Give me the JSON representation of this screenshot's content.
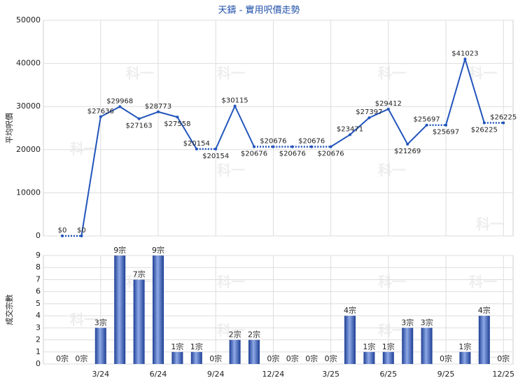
{
  "chart_data": [
    {
      "type": "line",
      "title": "天鑄 - 實用呎價走勢",
      "watermark": "科一",
      "ylabel": "平均呎價",
      "color": "#2255bb",
      "categories": [
        null,
        null,
        "3/24",
        null,
        null,
        "6/24",
        null,
        null,
        "9/24",
        null,
        null,
        "12/24",
        null,
        null,
        "3/25",
        null,
        null,
        "6/25",
        null,
        null,
        "9/25",
        null,
        null,
        "12/25"
      ],
      "values": [
        0,
        0,
        27636,
        29968,
        27163,
        28773,
        27558,
        20154,
        20154,
        30115,
        20676,
        20676,
        20676,
        20676,
        20676,
        23471,
        27397,
        29412,
        21269,
        25697,
        25697,
        41023,
        26225,
        26225
      ],
      "value_labels": [
        "$0",
        "$0",
        "$27636",
        "$29968",
        "$27163",
        "$28773",
        "$27558",
        "$20154",
        "$20154",
        "$30115",
        "$20676",
        "$20676",
        "$20676",
        "$20676",
        "$20676",
        "$23471",
        "$27397",
        "$29412",
        "$21269",
        "$25697",
        "$25697",
        "$41023",
        "$26225",
        "$26225"
      ],
      "ylim": [
        0,
        50000
      ],
      "yticks": [
        0,
        10000,
        20000,
        30000,
        40000,
        50000
      ],
      "grid": true
    },
    {
      "type": "bar",
      "ylabel": "成交宗數",
      "color": "#2a52b0",
      "categories": [
        null,
        null,
        "3/24",
        null,
        null,
        "6/24",
        null,
        null,
        "9/24",
        null,
        null,
        "12/24",
        null,
        null,
        "3/25",
        null,
        null,
        "6/25",
        null,
        null,
        "9/25",
        null,
        null,
        "12/25"
      ],
      "values": [
        0,
        0,
        3,
        9,
        7,
        9,
        1,
        1,
        0,
        2,
        2,
        0,
        0,
        0,
        0,
        4,
        1,
        1,
        3,
        3,
        0,
        1,
        4,
        0
      ],
      "value_labels": [
        "0宗",
        "0宗",
        "3宗",
        "9宗",
        "7宗",
        "9宗",
        "1宗",
        "1宗",
        "0宗",
        "2宗",
        "2宗",
        "0宗",
        "0宗",
        "0宗",
        "0宗",
        "4宗",
        "1宗",
        "1宗",
        "3宗",
        "3宗",
        "0宗",
        "1宗",
        "4宗",
        "0宗"
      ],
      "ylim": [
        0,
        9
      ],
      "yticks": [
        0,
        1,
        2,
        3,
        4,
        5,
        6,
        7,
        8,
        9
      ],
      "grid": true
    }
  ]
}
